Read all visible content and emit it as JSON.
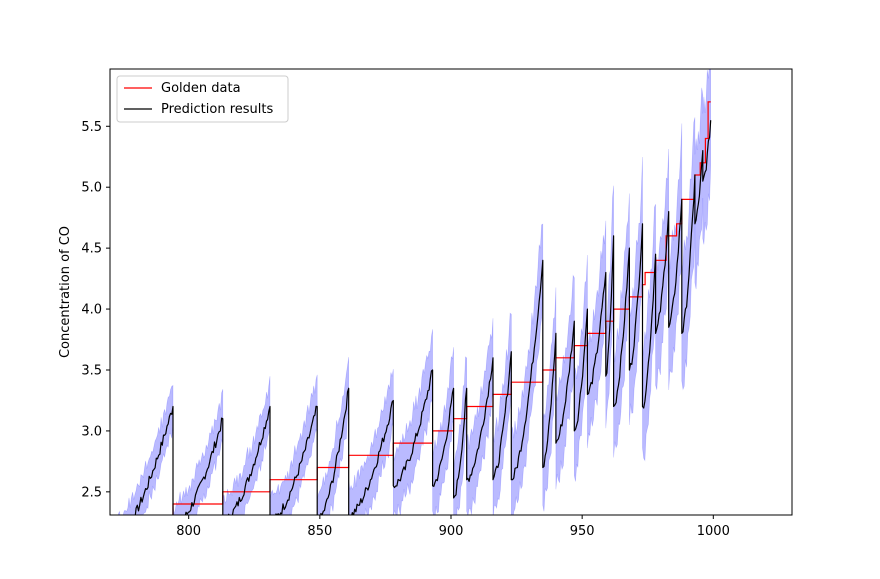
{
  "chart_data": {
    "type": "line",
    "title": "",
    "xlabel": "",
    "ylabel": "Concentration of CO",
    "xlim": [
      770,
      1030
    ],
    "ylim": [
      2.31,
      5.97
    ],
    "xticks": [
      800,
      850,
      900,
      950,
      1000
    ],
    "xtick_labels": [
      "800",
      "850",
      "900",
      "950",
      "1000"
    ],
    "yticks": [
      2.5,
      3.0,
      3.5,
      4.0,
      4.5,
      5.0,
      5.5
    ],
    "ytick_labels": [
      "2.5",
      "3.0",
      "3.5",
      "4.0",
      "4.5",
      "5.0",
      "5.5"
    ],
    "grid": false,
    "legend_position": "top-left",
    "band_color": "#0000ff",
    "series": [
      {
        "name": "Golden data",
        "color": "#ff0000",
        "kind": "step",
        "steps": [
          {
            "x": [
              770,
              794
            ],
            "y": 2.3
          },
          {
            "x": [
              794,
              813
            ],
            "y": 2.4
          },
          {
            "x": [
              813,
              831
            ],
            "y": 2.5
          },
          {
            "x": [
              831,
              849
            ],
            "y": 2.6
          },
          {
            "x": [
              849,
              861
            ],
            "y": 2.7
          },
          {
            "x": [
              861,
              878
            ],
            "y": 2.8
          },
          {
            "x": [
              878,
              893
            ],
            "y": 2.9
          },
          {
            "x": [
              893,
              901
            ],
            "y": 3.0
          },
          {
            "x": [
              901,
              906
            ],
            "y": 3.1
          },
          {
            "x": [
              906,
              916
            ],
            "y": 3.2
          },
          {
            "x": [
              916,
              923
            ],
            "y": 3.3
          },
          {
            "x": [
              923,
              935
            ],
            "y": 3.4
          },
          {
            "x": [
              935,
              940
            ],
            "y": 3.5
          },
          {
            "x": [
              940,
              947
            ],
            "y": 3.6
          },
          {
            "x": [
              947,
              952
            ],
            "y": 3.7
          },
          {
            "x": [
              952,
              959
            ],
            "y": 3.8
          },
          {
            "x": [
              959,
              962
            ],
            "y": 3.9
          },
          {
            "x": [
              962,
              968
            ],
            "y": 4.0
          },
          {
            "x": [
              968,
              973
            ],
            "y": 4.1
          },
          {
            "x": [
              973,
              974
            ],
            "y": 4.2
          },
          {
            "x": [
              974,
              978
            ],
            "y": 4.3
          },
          {
            "x": [
              978,
              982
            ],
            "y": 4.4
          },
          {
            "x": [
              982,
              986
            ],
            "y": 4.6
          },
          {
            "x": [
              986,
              988
            ],
            "y": 4.7
          },
          {
            "x": [
              988,
              990
            ],
            "y": 4.9
          },
          {
            "x": [
              990,
              993
            ],
            "y": 4.9
          },
          {
            "x": [
              993,
              995
            ],
            "y": 5.1
          },
          {
            "x": [
              995,
              997
            ],
            "y": 5.2
          },
          {
            "x": [
              997,
              998
            ],
            "y": 5.4
          },
          {
            "x": [
              998,
              999
            ],
            "y": 5.7
          }
        ]
      },
      {
        "name": "Prediction results",
        "color": "#000000",
        "kind": "sawtooth",
        "cycles": [
          {
            "x0": 770,
            "x1": 794,
            "y0": 2.05,
            "y1": 3.2
          },
          {
            "x0": 794,
            "x1": 813,
            "y0": 2.2,
            "y1": 3.1
          },
          {
            "x0": 813,
            "x1": 831,
            "y0": 2.25,
            "y1": 3.2
          },
          {
            "x0": 831,
            "x1": 849,
            "y0": 2.25,
            "y1": 3.2
          },
          {
            "x0": 849,
            "x1": 861,
            "y0": 2.25,
            "y1": 3.35
          },
          {
            "x0": 861,
            "x1": 878,
            "y0": 2.3,
            "y1": 3.25
          },
          {
            "x0": 878,
            "x1": 893,
            "y0": 2.55,
            "y1": 3.5
          },
          {
            "x0": 893,
            "x1": 901,
            "y0": 2.55,
            "y1": 3.35
          },
          {
            "x0": 901,
            "x1": 906,
            "y0": 2.45,
            "y1": 3.35
          },
          {
            "x0": 906,
            "x1": 916,
            "y0": 2.6,
            "y1": 3.6
          },
          {
            "x0": 916,
            "x1": 923,
            "y0": 2.6,
            "y1": 3.65
          },
          {
            "x0": 923,
            "x1": 935,
            "y0": 2.6,
            "y1": 4.4
          },
          {
            "x0": 935,
            "x1": 940,
            "y0": 2.7,
            "y1": 3.8
          },
          {
            "x0": 940,
            "x1": 947,
            "y0": 2.9,
            "y1": 3.9
          },
          {
            "x0": 947,
            "x1": 952,
            "y0": 3.0,
            "y1": 4.0
          },
          {
            "x0": 952,
            "x1": 959,
            "y0": 3.3,
            "y1": 4.3
          },
          {
            "x0": 959,
            "x1": 962,
            "y0": 3.45,
            "y1": 4.6
          },
          {
            "x0": 962,
            "x1": 968,
            "y0": 3.2,
            "y1": 4.5
          },
          {
            "x0": 968,
            "x1": 973,
            "y0": 3.5,
            "y1": 4.7
          },
          {
            "x0": 973,
            "x1": 978,
            "y0": 3.2,
            "y1": 4.45
          },
          {
            "x0": 978,
            "x1": 983,
            "y0": 3.8,
            "y1": 4.8
          },
          {
            "x0": 983,
            "x1": 988,
            "y0": 3.85,
            "y1": 4.9
          },
          {
            "x0": 988,
            "x1": 993,
            "y0": 3.8,
            "y1": 5.1
          },
          {
            "x0": 993,
            "x1": 996,
            "y0": 4.7,
            "y1": 5.3
          },
          {
            "x0": 996,
            "x1": 999,
            "y0": 5.05,
            "y1": 5.55
          }
        ]
      }
    ],
    "band": {
      "label": "",
      "halfwidth_start": 0.18,
      "halfwidth_end": 0.55
    }
  }
}
